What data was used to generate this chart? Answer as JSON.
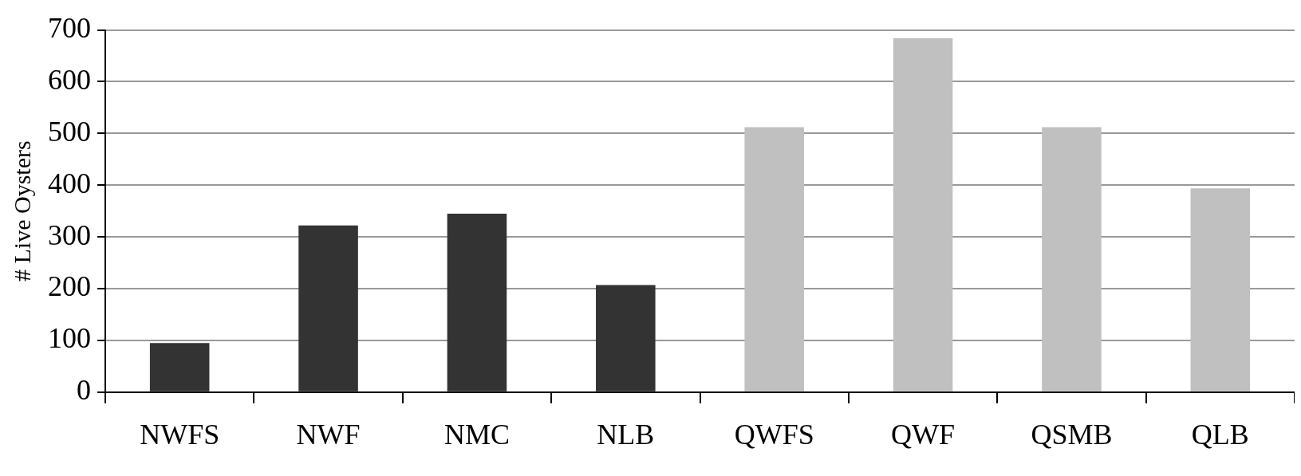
{
  "chart_data": {
    "type": "bar",
    "ylabel": "# Live Oysters",
    "categories": [
      "NWFS",
      "NWF",
      "NMC",
      "NLB",
      "QWFS",
      "QWF",
      "QSMB",
      "QLB"
    ],
    "values": [
      95,
      322,
      345,
      207,
      512,
      684,
      512,
      394
    ],
    "colors": [
      "#333333",
      "#333333",
      "#333333",
      "#333333",
      "#c0c0c0",
      "#c0c0c0",
      "#c0c0c0",
      "#c0c0c0"
    ],
    "ylim": [
      0,
      700
    ],
    "yticks": [
      0,
      100,
      200,
      300,
      400,
      500,
      600,
      700
    ],
    "grid": "y",
    "legend": false
  }
}
